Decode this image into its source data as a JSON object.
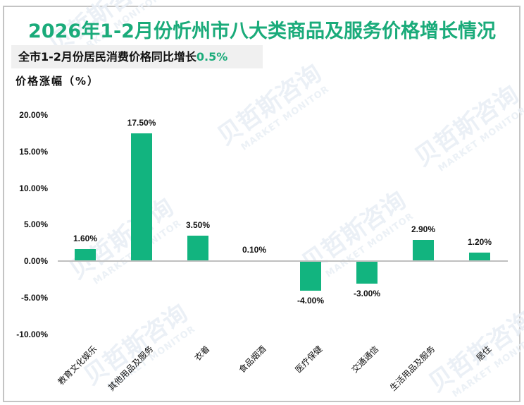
{
  "header": {
    "title": "2026年1-2月份忻州市八大类商品及服务价格增长情况",
    "subtitle_prefix": "全市1-2月份居民消费价格同比增长",
    "subtitle_value": "0.5%",
    "unit_label": "价格涨幅（%）"
  },
  "watermark": {
    "cn": "贝哲斯咨询",
    "en": "MARKET MONITOR"
  },
  "colors": {
    "bar": "#12b47f",
    "title": "#1aab7a",
    "axis": "#bfbfbf",
    "subtitle_bg": "#f0f0f0"
  },
  "y_ticks": [
    "20.00%",
    "15.00%",
    "10.00%",
    "5.00%",
    "0.00%",
    "-5.00%",
    "-10.00%"
  ],
  "bars": [
    {
      "category": "教育文化娱乐",
      "value": 1.6,
      "label": "1.60%"
    },
    {
      "category": "其他用品及服务",
      "value": 17.5,
      "label": "17.50%"
    },
    {
      "category": "衣着",
      "value": 3.5,
      "label": "3.50%"
    },
    {
      "category": "食品烟酒",
      "value": 0.1,
      "label": "0.10%"
    },
    {
      "category": "医疗保健",
      "value": -4.0,
      "label": "-4.00%"
    },
    {
      "category": "交通通信",
      "value": -3.0,
      "label": "-3.00%"
    },
    {
      "category": "生活用品及服务",
      "value": 2.9,
      "label": "2.90%"
    },
    {
      "category": "居住",
      "value": 1.2,
      "label": "1.20%"
    }
  ],
  "chart_data": {
    "type": "bar",
    "title": "2026年1-2月份忻州市八大类商品及服务价格增长情况",
    "subtitle": "全市1-2月份居民消费价格同比增长0.5%",
    "categories": [
      "教育文化娱乐",
      "其他用品及服务",
      "衣着",
      "食品烟酒",
      "医疗保健",
      "交通通信",
      "生活用品及服务",
      "居住"
    ],
    "values": [
      1.6,
      17.5,
      3.5,
      0.1,
      -4.0,
      -3.0,
      2.9,
      1.2
    ],
    "data_labels": [
      "1.60%",
      "17.50%",
      "3.50%",
      "0.10%",
      "-4.00%",
      "-3.00%",
      "2.90%",
      "1.20%"
    ],
    "xlabel": "",
    "ylabel": "价格涨幅（%）",
    "ylim": [
      -10,
      20
    ],
    "yticks": [
      -10,
      -5,
      0,
      5,
      10,
      15,
      20
    ],
    "grid": false,
    "legend": null
  }
}
